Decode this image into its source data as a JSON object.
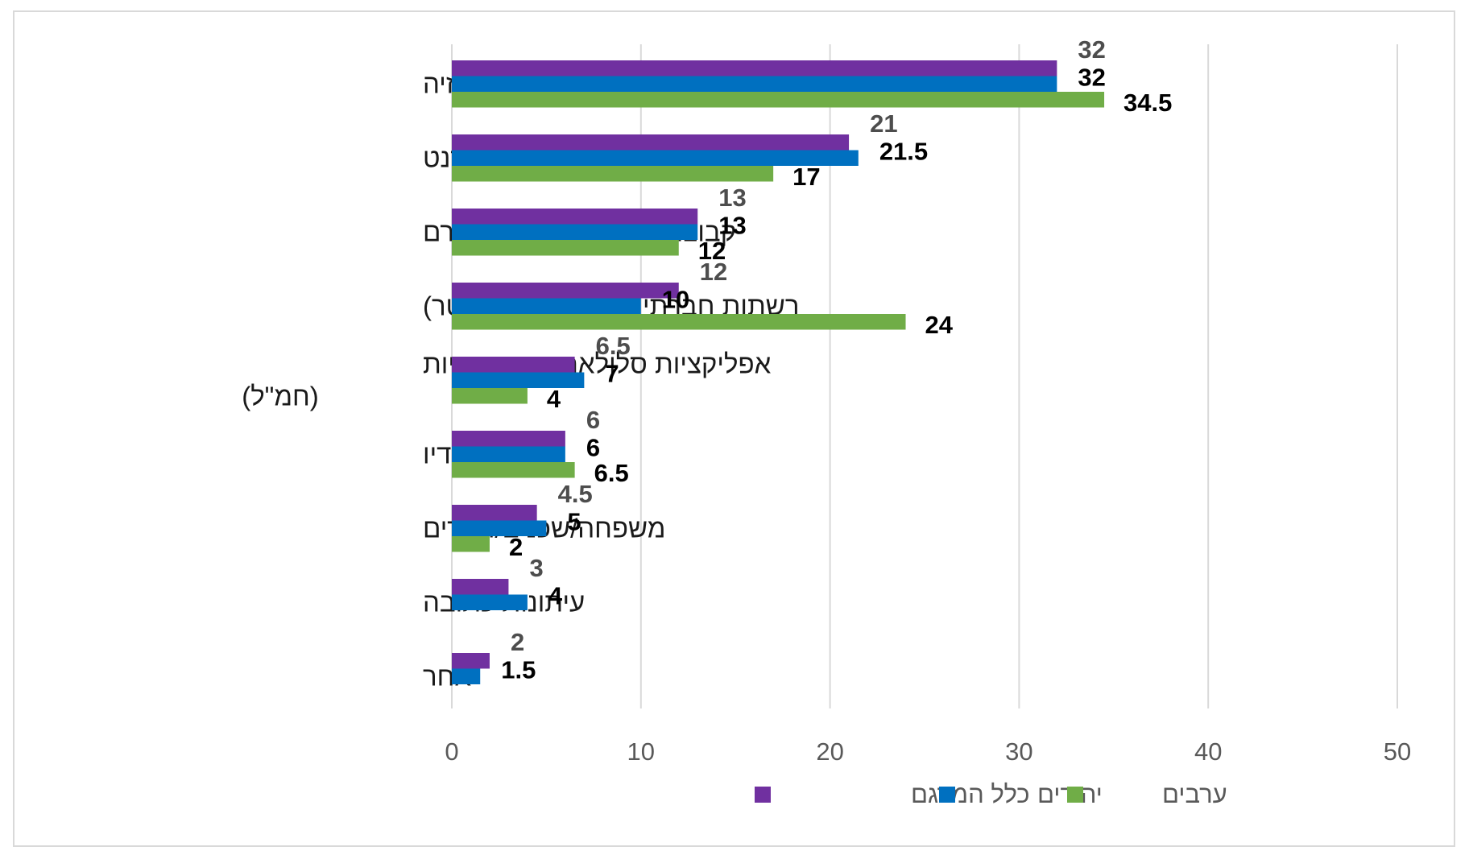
{
  "chart_data": {
    "type": "bar",
    "orientation": "horizontal",
    "title": "",
    "xlabel": "",
    "ylabel": "",
    "xlim": [
      0,
      50
    ],
    "x_ticks": [
      0,
      10,
      20,
      30,
      40,
      50
    ],
    "grid": "vertical",
    "legend_position": "bottom",
    "categories": [
      "טלוויזיה",
      "אתרי חדשות באינטרנט",
      "קבוצות ווטסאפ/ערוצי טלגרם",
      "רשתות חברתיות (פייסבוק, טוויטר)",
      "אפליקציות סלולארית חדשותיות (חמ\"ל)",
      "רדיו",
      "משפחה/שכנים/חברים",
      "עיתונות כתובה",
      "אחר"
    ],
    "category_lines": [
      [
        "טלוויזיה"
      ],
      [
        "אתרי חדשות באינטרנט"
      ],
      [
        "קבוצות ווטסאפ/ערוצי טלגרם"
      ],
      [
        "רשתות חברתיות (פייסבוק, טוויטר)"
      ],
      [
        "אפליקציות סלולארית חדשותיות",
        "(חמ\"ל)"
      ],
      [
        "רדיו"
      ],
      [
        "משפחה/שכנים/חברים"
      ],
      [
        "עיתונות כתובה"
      ],
      [
        "אחר"
      ]
    ],
    "series": [
      {
        "name": "כלל המדגם",
        "color": "#7030a0",
        "values": [
          32,
          21,
          13,
          12,
          6.5,
          6,
          4.5,
          3,
          2
        ],
        "labels": [
          "32",
          "21",
          "13",
          "12",
          "6.5",
          "6",
          "4.5",
          "3",
          "2"
        ]
      },
      {
        "name": "יהודים",
        "color": "#0070c0",
        "values": [
          32,
          21.5,
          13,
          10,
          7,
          6,
          5,
          4,
          1.5
        ],
        "labels": [
          "32",
          "21.5",
          "13",
          "10",
          "7",
          "6",
          "5",
          "4",
          "1.5"
        ]
      },
      {
        "name": "ערבים",
        "color": "#70ad47",
        "values": [
          34.5,
          17,
          12,
          24,
          4,
          6.5,
          2,
          null,
          null
        ],
        "labels": [
          "34.5",
          "17",
          "12",
          "24",
          "4",
          "6.5",
          "2",
          null,
          null
        ]
      }
    ]
  }
}
